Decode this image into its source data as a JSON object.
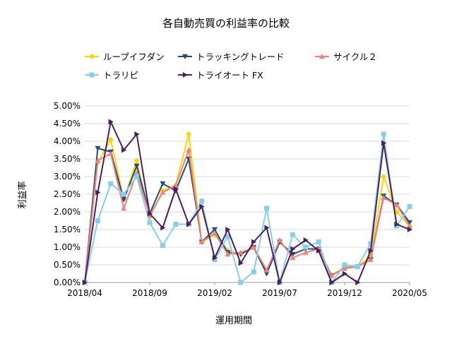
{
  "chart_data": {
    "type": "line",
    "title": "各自動売買の利益率の比較",
    "xlabel": "運用期間",
    "ylabel": "利益率",
    "ylim": [
      0,
      0.05
    ],
    "y_ticks": [
      "0.00%",
      "0.50%",
      "1.00%",
      "1.50%",
      "2.00%",
      "2.50%",
      "3.00%",
      "3.50%",
      "4.00%",
      "4.50%",
      "5.00%"
    ],
    "x": [
      "2018/04",
      "2018/05",
      "2018/06",
      "2018/07",
      "2018/08",
      "2018/09",
      "2018/10",
      "2018/11",
      "2018/12",
      "2019/01",
      "2019/02",
      "2019/03",
      "2019/04",
      "2019/05",
      "2019/06",
      "2019/07",
      "2019/08",
      "2019/09",
      "2019/10",
      "2019/11",
      "2019/12",
      "2020/01",
      "2020/02",
      "2020/03",
      "2020/04",
      "2020/05"
    ],
    "x_tick_labels": [
      "2018/04",
      "2018/09",
      "2019/02",
      "2019/07",
      "2019/12",
      "2020/05"
    ],
    "grid": "horizontal",
    "legend_position": "top",
    "series": [
      {
        "name": "ループイフダン",
        "color": "#FFD200",
        "marker": "diamond",
        "values": [
          0.0,
          0.034,
          0.0405,
          0.0235,
          0.0345,
          0.0185,
          0.026,
          0.0275,
          0.042,
          0.0115,
          0.0135,
          0.009,
          0.008,
          0.01,
          0.0035,
          0.0115,
          0.008,
          0.0095,
          0.0095,
          0.002,
          0.0045,
          0.0045,
          0.0075,
          0.03,
          0.02,
          0.016
        ]
      },
      {
        "name": "トラッキングトレード",
        "color": "#1F4E79",
        "marker": "triangle-down",
        "values": [
          0.0,
          0.038,
          0.037,
          0.0235,
          0.033,
          0.0195,
          0.028,
          0.026,
          0.035,
          0.0115,
          0.015,
          0.0085,
          0.008,
          0.01,
          0.0025,
          0.0115,
          0.008,
          0.0095,
          0.0095,
          0.002,
          0.004,
          0.0045,
          0.0065,
          0.0245,
          0.022,
          0.017
        ]
      },
      {
        "name": "サイクル２",
        "color": "#F08080",
        "marker": "triangle",
        "values": [
          0.0,
          0.0345,
          0.0365,
          0.021,
          0.031,
          0.019,
          0.0255,
          0.0275,
          0.0375,
          0.0115,
          0.014,
          0.008,
          0.0085,
          0.01,
          0.0035,
          0.012,
          0.007,
          0.0085,
          0.0095,
          0.002,
          0.004,
          0.0045,
          0.0065,
          0.024,
          0.022,
          0.016
        ]
      },
      {
        "name": "トラリピ",
        "color": "#87CEEB",
        "marker": "square",
        "values": [
          0.0,
          0.0175,
          0.028,
          0.025,
          0.03,
          0.017,
          0.0105,
          0.0165,
          0.0165,
          0.023,
          0.0065,
          0.013,
          0.0,
          0.003,
          0.021,
          0.0,
          0.0135,
          0.01,
          0.0115,
          0.0,
          0.005,
          0.0045,
          0.011,
          0.042,
          0.016,
          0.0215
        ]
      },
      {
        "name": "トライオート FX",
        "color": "#4B1E5E",
        "marker": "triangle-right",
        "values": [
          0.0,
          0.0255,
          0.0455,
          0.0375,
          0.042,
          0.0195,
          0.0155,
          0.0265,
          0.0165,
          0.0215,
          0.007,
          0.015,
          0.0055,
          0.0115,
          0.0155,
          0.0,
          0.0095,
          0.012,
          0.009,
          0.0,
          0.0025,
          0.0,
          0.009,
          0.0395,
          0.0165,
          0.015
        ]
      }
    ]
  }
}
